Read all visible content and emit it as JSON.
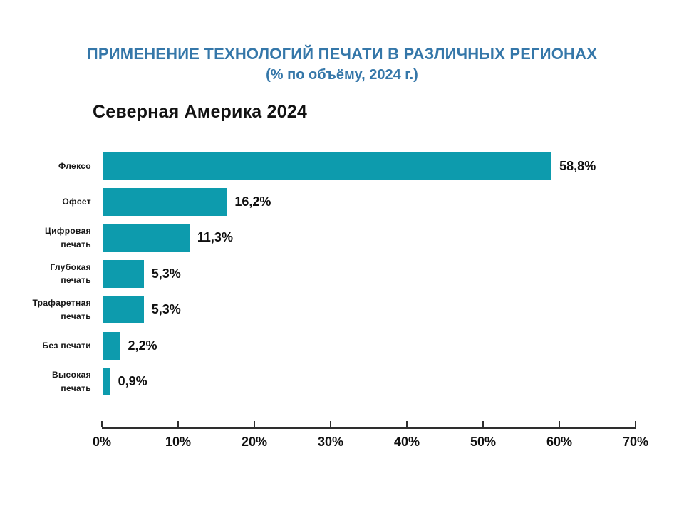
{
  "header": {
    "title_line1": "ПРИМЕНЕНИЕ ТЕХНОЛОГИЙ ПЕЧАТИ В РАЗЛИЧНЫХ РЕГИОНАХ",
    "title_line2": "(% по объёму, 2024 г.)",
    "region_title": "Северная Америка 2024"
  },
  "colors": {
    "bar": "#0d9bad",
    "title": "#3577a9",
    "text": "#161616",
    "axis": "#2e2e2e"
  },
  "chart_data": {
    "type": "bar",
    "orientation": "horizontal",
    "title": "Северная Америка 2024",
    "categories": [
      "Флексо",
      "Офсет",
      "Цифровая печать",
      "Глубокая печать",
      "Трафаретная печать",
      "Без печати",
      "Высокая печать"
    ],
    "values": [
      58.8,
      16.2,
      11.3,
      5.3,
      5.3,
      2.2,
      0.9
    ],
    "value_labels": [
      "58,8%",
      "16,2%",
      "11,3%",
      "5,3%",
      "5,3%",
      "2,2%",
      "0,9%"
    ],
    "xlabel": "",
    "ylabel": "",
    "xlim": [
      0,
      70
    ],
    "x_ticks": [
      "0%",
      "10%",
      "20%",
      "30%",
      "40%",
      "50%",
      "60%",
      "70%"
    ],
    "grid": false,
    "legend": false,
    "bar_labels_position": "outside-end"
  }
}
